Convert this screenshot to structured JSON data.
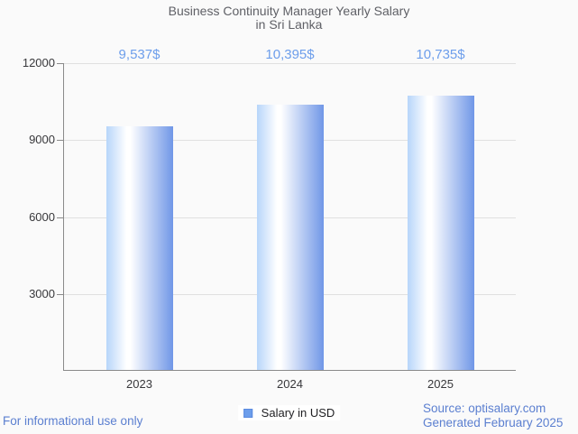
{
  "title": {
    "line1": "Business Continuity Manager Yearly Salary",
    "line2": "in Sri Lanka"
  },
  "chart_data": {
    "type": "bar",
    "title": "Business Continuity Manager Yearly Salary in Sri Lanka",
    "categories": [
      "2023",
      "2024",
      "2025"
    ],
    "series": [
      {
        "name": "Salary in USD",
        "values": [
          9537,
          10395,
          10735
        ]
      }
    ],
    "value_labels": [
      "9,537$",
      "10,395$",
      "10,735$"
    ],
    "xlabel": "",
    "ylabel": "",
    "ylim": [
      0,
      12000
    ],
    "yticks": [
      3000,
      6000,
      9000,
      12000
    ],
    "grid": true,
    "legend_position": "bottom",
    "bar_gradient": {
      "left": "#b7d5fa",
      "mid": "#ffffff",
      "right": "#7097e7"
    }
  },
  "legend": {
    "label": "Salary in USD",
    "swatch_color": "#6d9eeb"
  },
  "footer": {
    "left": "For informational use only",
    "source_line1": "Source: optisalary.com",
    "source_line2": "Generated February 2025"
  },
  "colors": {
    "value_label": "#6d9eeb",
    "footer_text": "#5b7fd0",
    "title_text": "#5f6066"
  }
}
